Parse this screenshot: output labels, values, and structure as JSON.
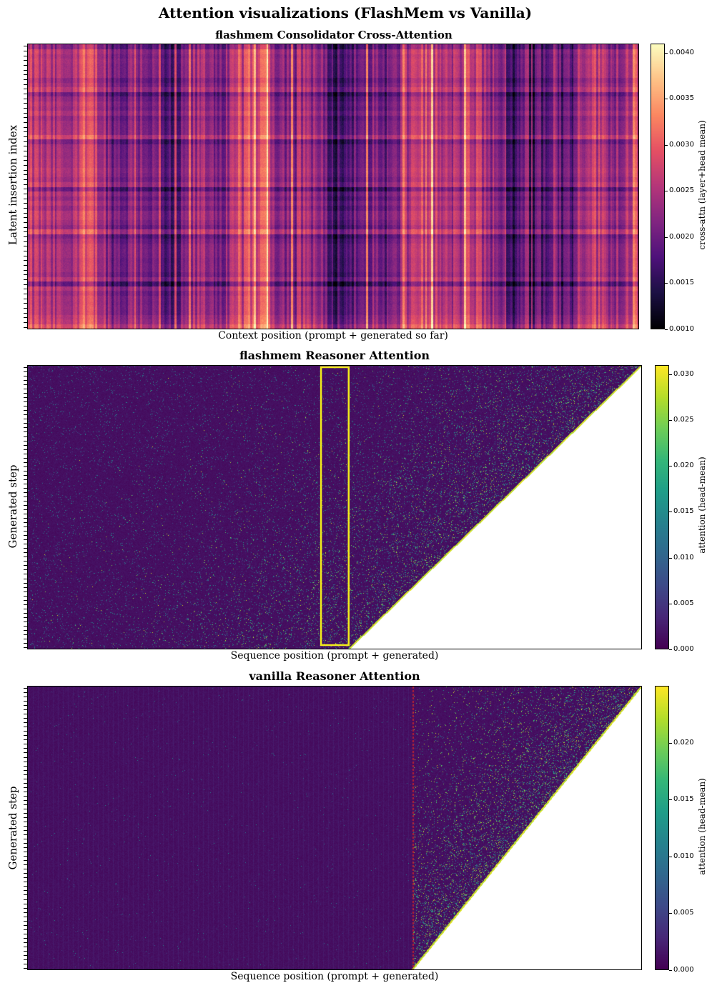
{
  "figure": {
    "title": "Attention visualizations (FlashMem vs Vanilla)"
  },
  "panels": {
    "p1": {
      "title": "flashmem Consolidator Cross-Attention",
      "xlabel": "Context position (prompt + generated so far)",
      "ylabel": "Latent insertion index",
      "colorbar_label": "cross-attn (layer+head mean)",
      "colorbar_ticks": [
        "0.0040",
        "0.0035",
        "0.0030",
        "0.0025",
        "0.0020",
        "0.0015",
        "0.0010"
      ]
    },
    "p2": {
      "title": "flashmem Reasoner Attention",
      "xlabel": "Sequence position (prompt + generated)",
      "ylabel": "Generated step",
      "colorbar_label": "attention (head-mean)",
      "colorbar_ticks": [
        "0.030",
        "0.025",
        "0.020",
        "0.015",
        "0.010",
        "0.005",
        "0.000"
      ]
    },
    "p3": {
      "title": "vanilla Reasoner Attention",
      "xlabel": "Sequence position (prompt + generated)",
      "ylabel": "Generated step",
      "colorbar_label": "attention (head-mean)",
      "colorbar_ticks": [
        "0.020",
        "0.015",
        "0.010",
        "0.005",
        "0.000"
      ]
    }
  },
  "colors": {
    "highlight_box": "#f2ec1c",
    "prompt_boundary_line": "#d62728"
  },
  "chart_data": [
    {
      "type": "heatmap",
      "title": "flashmem Consolidator Cross-Attention",
      "xlabel": "Context position (prompt + generated so far)",
      "ylabel": "Latent insertion index",
      "colormap": "magma",
      "vmin": 0.001,
      "vmax": 0.0041,
      "colorbar_ticks": [
        0.001,
        0.0015,
        0.002,
        0.0025,
        0.003,
        0.0035,
        0.004
      ],
      "latent_groups": 6,
      "hot_column_fraction": 0.39
    },
    {
      "type": "heatmap",
      "title": "flashmem Reasoner Attention",
      "xlabel": "Sequence position (prompt + generated)",
      "ylabel": "Generated step",
      "colormap": "viridis",
      "vmin": 0.0,
      "vmax": 0.031,
      "colorbar_ticks": [
        0.0,
        0.005,
        0.01,
        0.015,
        0.02,
        0.025,
        0.03
      ],
      "causal_mask": "upper-right triangle",
      "highlighted_region_fraction": [
        0.478,
        0.523
      ]
    },
    {
      "type": "heatmap",
      "title": "vanilla Reasoner Attention",
      "xlabel": "Sequence position (prompt + generated)",
      "ylabel": "Generated step",
      "colormap": "viridis",
      "vmin": 0.0,
      "vmax": 0.025,
      "colorbar_ticks": [
        0.0,
        0.005,
        0.01,
        0.015,
        0.02
      ],
      "causal_mask": "upper-right triangle",
      "prompt_boundary_fraction": 0.628
    }
  ]
}
